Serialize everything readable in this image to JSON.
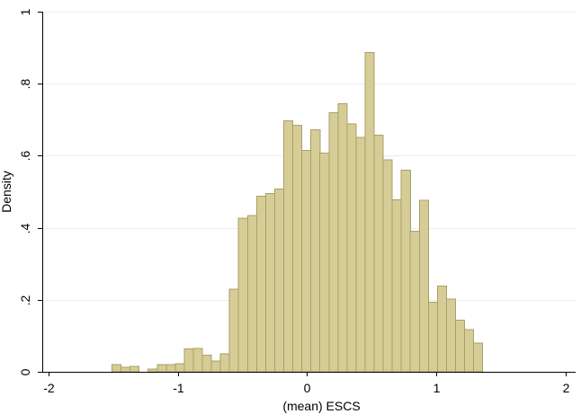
{
  "chart_data": {
    "type": "bar",
    "subtype": "histogram",
    "xlabel": "(mean) ESCS",
    "ylabel": "Density",
    "xlim": [
      -2.05,
      2.08
    ],
    "ylim": [
      0,
      1
    ],
    "x_ticks": [
      -2,
      -1,
      0,
      1,
      2
    ],
    "x_tick_labels": [
      "-2",
      "-1",
      "0",
      "1",
      "2"
    ],
    "y_ticks": [
      0,
      0.2,
      0.4,
      0.6,
      0.8,
      1
    ],
    "y_tick_labels": [
      "0",
      ".2",
      ".4",
      ".6",
      ".8",
      "1"
    ],
    "grid": "horizontal",
    "bin_width": 0.07,
    "bin_starts": [
      -1.51,
      -1.44,
      -1.37,
      -1.3,
      -1.23,
      -1.16,
      -1.09,
      -1.02,
      -0.95,
      -0.88,
      -0.81,
      -0.74,
      -0.67,
      -0.6,
      -0.53,
      -0.46,
      -0.39,
      -0.32,
      -0.25,
      -0.18,
      -0.11,
      -0.04,
      0.03,
      0.1,
      0.17,
      0.24,
      0.31,
      0.38,
      0.45,
      0.52,
      0.59,
      0.66,
      0.73,
      0.8,
      0.87,
      0.94,
      1.01,
      1.08,
      1.15,
      1.22,
      1.29,
      1.36
    ],
    "values": [
      0.02,
      0.013,
      0.015,
      0.0,
      0.007,
      0.02,
      0.02,
      0.022,
      0.063,
      0.065,
      0.046,
      0.03,
      0.05,
      0.23,
      0.427,
      0.434,
      0.488,
      0.495,
      0.508,
      0.697,
      0.685,
      0.615,
      0.672,
      0.607,
      0.72,
      0.745,
      0.688,
      0.651,
      0.886,
      0.657,
      0.588,
      0.477,
      0.56,
      0.39,
      0.476,
      0.193,
      0.238,
      0.202,
      0.143,
      0.117,
      0.08,
      0.0
    ],
    "colors": {
      "bar_fill": "#d6cc96",
      "bar_stroke": "#a99f6a",
      "grid": "#ececec",
      "axis": "#000000"
    }
  }
}
